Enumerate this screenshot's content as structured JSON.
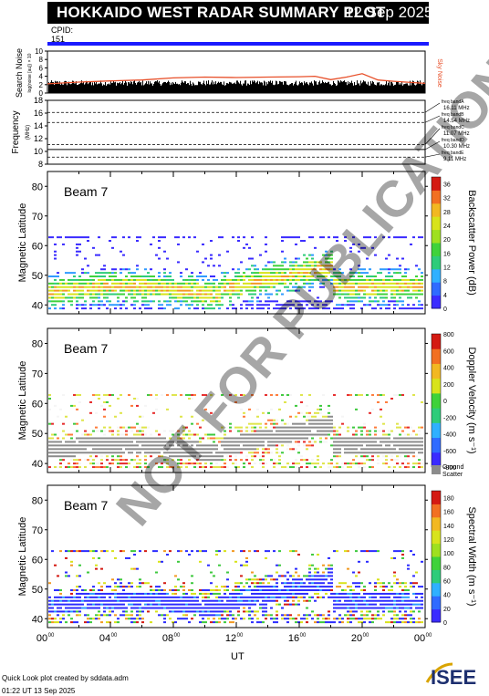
{
  "header": {
    "title": "HOKKAIDO WEST RADAR SUMMARY PLOT",
    "date": "12 Sep 2025",
    "cpid_label": "CPID:",
    "cpid_value": "151"
  },
  "watermark": "NOT FOR PUBLICATION",
  "footer": {
    "line1": "Quick Look plot created by sddata.adm",
    "line2": "01:22 UT 13 Sep 2025"
  },
  "logo_text": "ISEE",
  "colors": {
    "cpid_bar": "#1a1aff",
    "noise_red": "#e8502a",
    "ground_scatter": "#8c8c8c"
  },
  "chart_data": [
    {
      "type": "line",
      "panel": "noise",
      "ylabel": "Search Noise",
      "ylabel_units": "log(noise [au]) × 10",
      "ylim": [
        0,
        10
      ],
      "yticks": [
        "0",
        "2",
        "4",
        "6",
        "8",
        "10"
      ],
      "series": [
        {
          "name": "Sky Noise",
          "x_hours": [
            0,
            2,
            4,
            6,
            8,
            10,
            12,
            14,
            16,
            17,
            18,
            19,
            20,
            21,
            22,
            24
          ],
          "values": [
            2.2,
            2.6,
            2.9,
            3.1,
            3.6,
            3.8,
            3.7,
            3.8,
            3.9,
            4.0,
            3.2,
            3.8,
            4.6,
            3.1,
            2.8,
            2.3
          ]
        }
      ],
      "legend": "Sky Noise"
    },
    {
      "type": "line",
      "panel": "frequency",
      "ylabel": "Frequency",
      "ylabel_units": "(MHz)",
      "ylim": [
        8,
        18
      ],
      "yticks": [
        "8",
        "10",
        "12",
        "14",
        "16",
        "18"
      ],
      "bands": [
        {
          "name": "freq bandA",
          "value_label": "16.11 MHz",
          "value": 16.11
        },
        {
          "name": "freq bandB",
          "value_label": "14.54 MHz",
          "value": 14.54
        },
        {
          "name": "freq bandC",
          "value_label": "11.07 MHz",
          "value": 11.07
        },
        {
          "name": "freq bandD",
          "value_label": "10.30 MHz",
          "value": 10.3
        },
        {
          "name": "freq bandE",
          "value_label": "9.11 MHz",
          "value": 9.11
        }
      ]
    },
    {
      "type": "heatmap",
      "panel": "power",
      "beam_label": "Beam  7",
      "ylabel": "Magnetic Latitude",
      "ylim": [
        37,
        85
      ],
      "yticks": [
        "40",
        "50",
        "60",
        "70",
        "80"
      ],
      "colorbar_label": "Backscatter Power (dB)",
      "colorbar_ticks": [
        "0",
        "4",
        "8",
        "12",
        "16",
        "20",
        "24",
        "28",
        "32",
        "36"
      ],
      "colorbar_range": [
        0,
        36
      ]
    },
    {
      "type": "heatmap",
      "panel": "velocity",
      "beam_label": "Beam  7",
      "ylabel": "Magnetic Latitude",
      "ylim": [
        37,
        85
      ],
      "yticks": [
        "40",
        "50",
        "60",
        "70",
        "80"
      ],
      "colorbar_label": "Doppler Velocity (m s⁻¹)",
      "colorbar_ticks": [
        "800",
        "600",
        "400",
        "200",
        "0",
        "-200",
        "-400",
        "-600",
        "-800"
      ],
      "colorbar_range": [
        -800,
        800
      ],
      "ground_scatter_label": [
        "Ground",
        "Scatter"
      ]
    },
    {
      "type": "heatmap",
      "panel": "width",
      "beam_label": "Beam  7",
      "ylabel": "Magnetic Latitude",
      "ylim": [
        37,
        85
      ],
      "yticks": [
        "40",
        "50",
        "60",
        "70",
        "80"
      ],
      "colorbar_label": "Spectral Width (m s⁻¹)",
      "colorbar_ticks": [
        "0",
        "20",
        "40",
        "60",
        "80",
        "100",
        "120",
        "140",
        "160",
        "180"
      ],
      "colorbar_range": [
        0,
        180
      ],
      "xlabel": "UT",
      "xticks": [
        "00",
        "04",
        "08",
        "12",
        "16",
        "20",
        "00"
      ],
      "xtick_superscript": "00",
      "xlim_hours": [
        0,
        24
      ]
    }
  ]
}
